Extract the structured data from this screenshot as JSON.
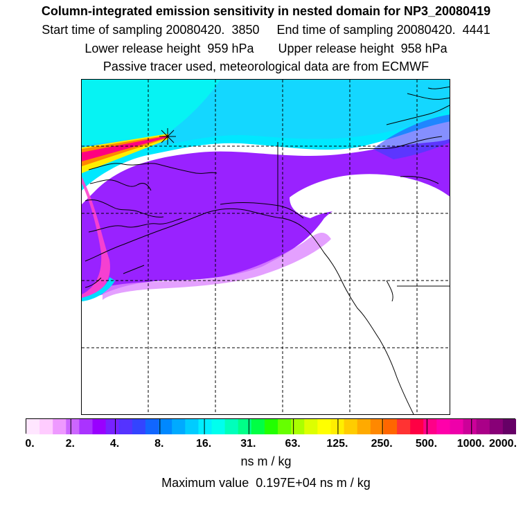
{
  "header": {
    "title": "Column-integrated emission sensitivity in nested domain for NP3_20080419",
    "sampling_line": "Start time of sampling 20080420.  3850     End time of sampling 20080420.  4441",
    "release_line": "Lower release height  959 hPa       Upper release height  958 hPa",
    "tracer_line": "Passive tracer used, meteorological data are from ECMWF"
  },
  "colors": {
    "background": "#ffffff",
    "grid": "#000000",
    "coast": "#000000",
    "scale": [
      "#ffe6ff",
      "#ffccff",
      "#ee99ff",
      "#cc66ff",
      "#aa33ff",
      "#9900ff",
      "#7722ff",
      "#5533ff",
      "#3344ff",
      "#1166ff",
      "#0088ff",
      "#00aaff",
      "#00ccff",
      "#00eeff",
      "#00ffee",
      "#00ffbb",
      "#00ff88",
      "#00ff44",
      "#22ff00",
      "#66ff00",
      "#aaff00",
      "#ddff00",
      "#ffff00",
      "#ffee00",
      "#ffcc00",
      "#ffaa00",
      "#ff8800",
      "#ff6600",
      "#ff3333",
      "#ff0044",
      "#ff0088",
      "#ff00aa",
      "#ee00aa",
      "#cc0099",
      "#aa0088",
      "#880077",
      "#660066"
    ]
  },
  "colorbar": {
    "tick_labels": [
      "0.",
      "2.",
      "4.",
      "8.",
      "16.",
      "31.",
      "63.",
      "125.",
      "250.",
      "500.",
      "1000.",
      "2000."
    ],
    "units_label": "ns m / kg",
    "max_label": "Maximum value  0.197E+04 ns m / kg"
  },
  "map": {
    "release_marker": "asterisk-marker",
    "field_levels": {
      "high": "#ff0080",
      "mid_high": "#ffee00",
      "mid": "#00ffdd",
      "low": "#00eeff",
      "lower": "#aa33ff",
      "lowest": "#ee99ff"
    }
  }
}
